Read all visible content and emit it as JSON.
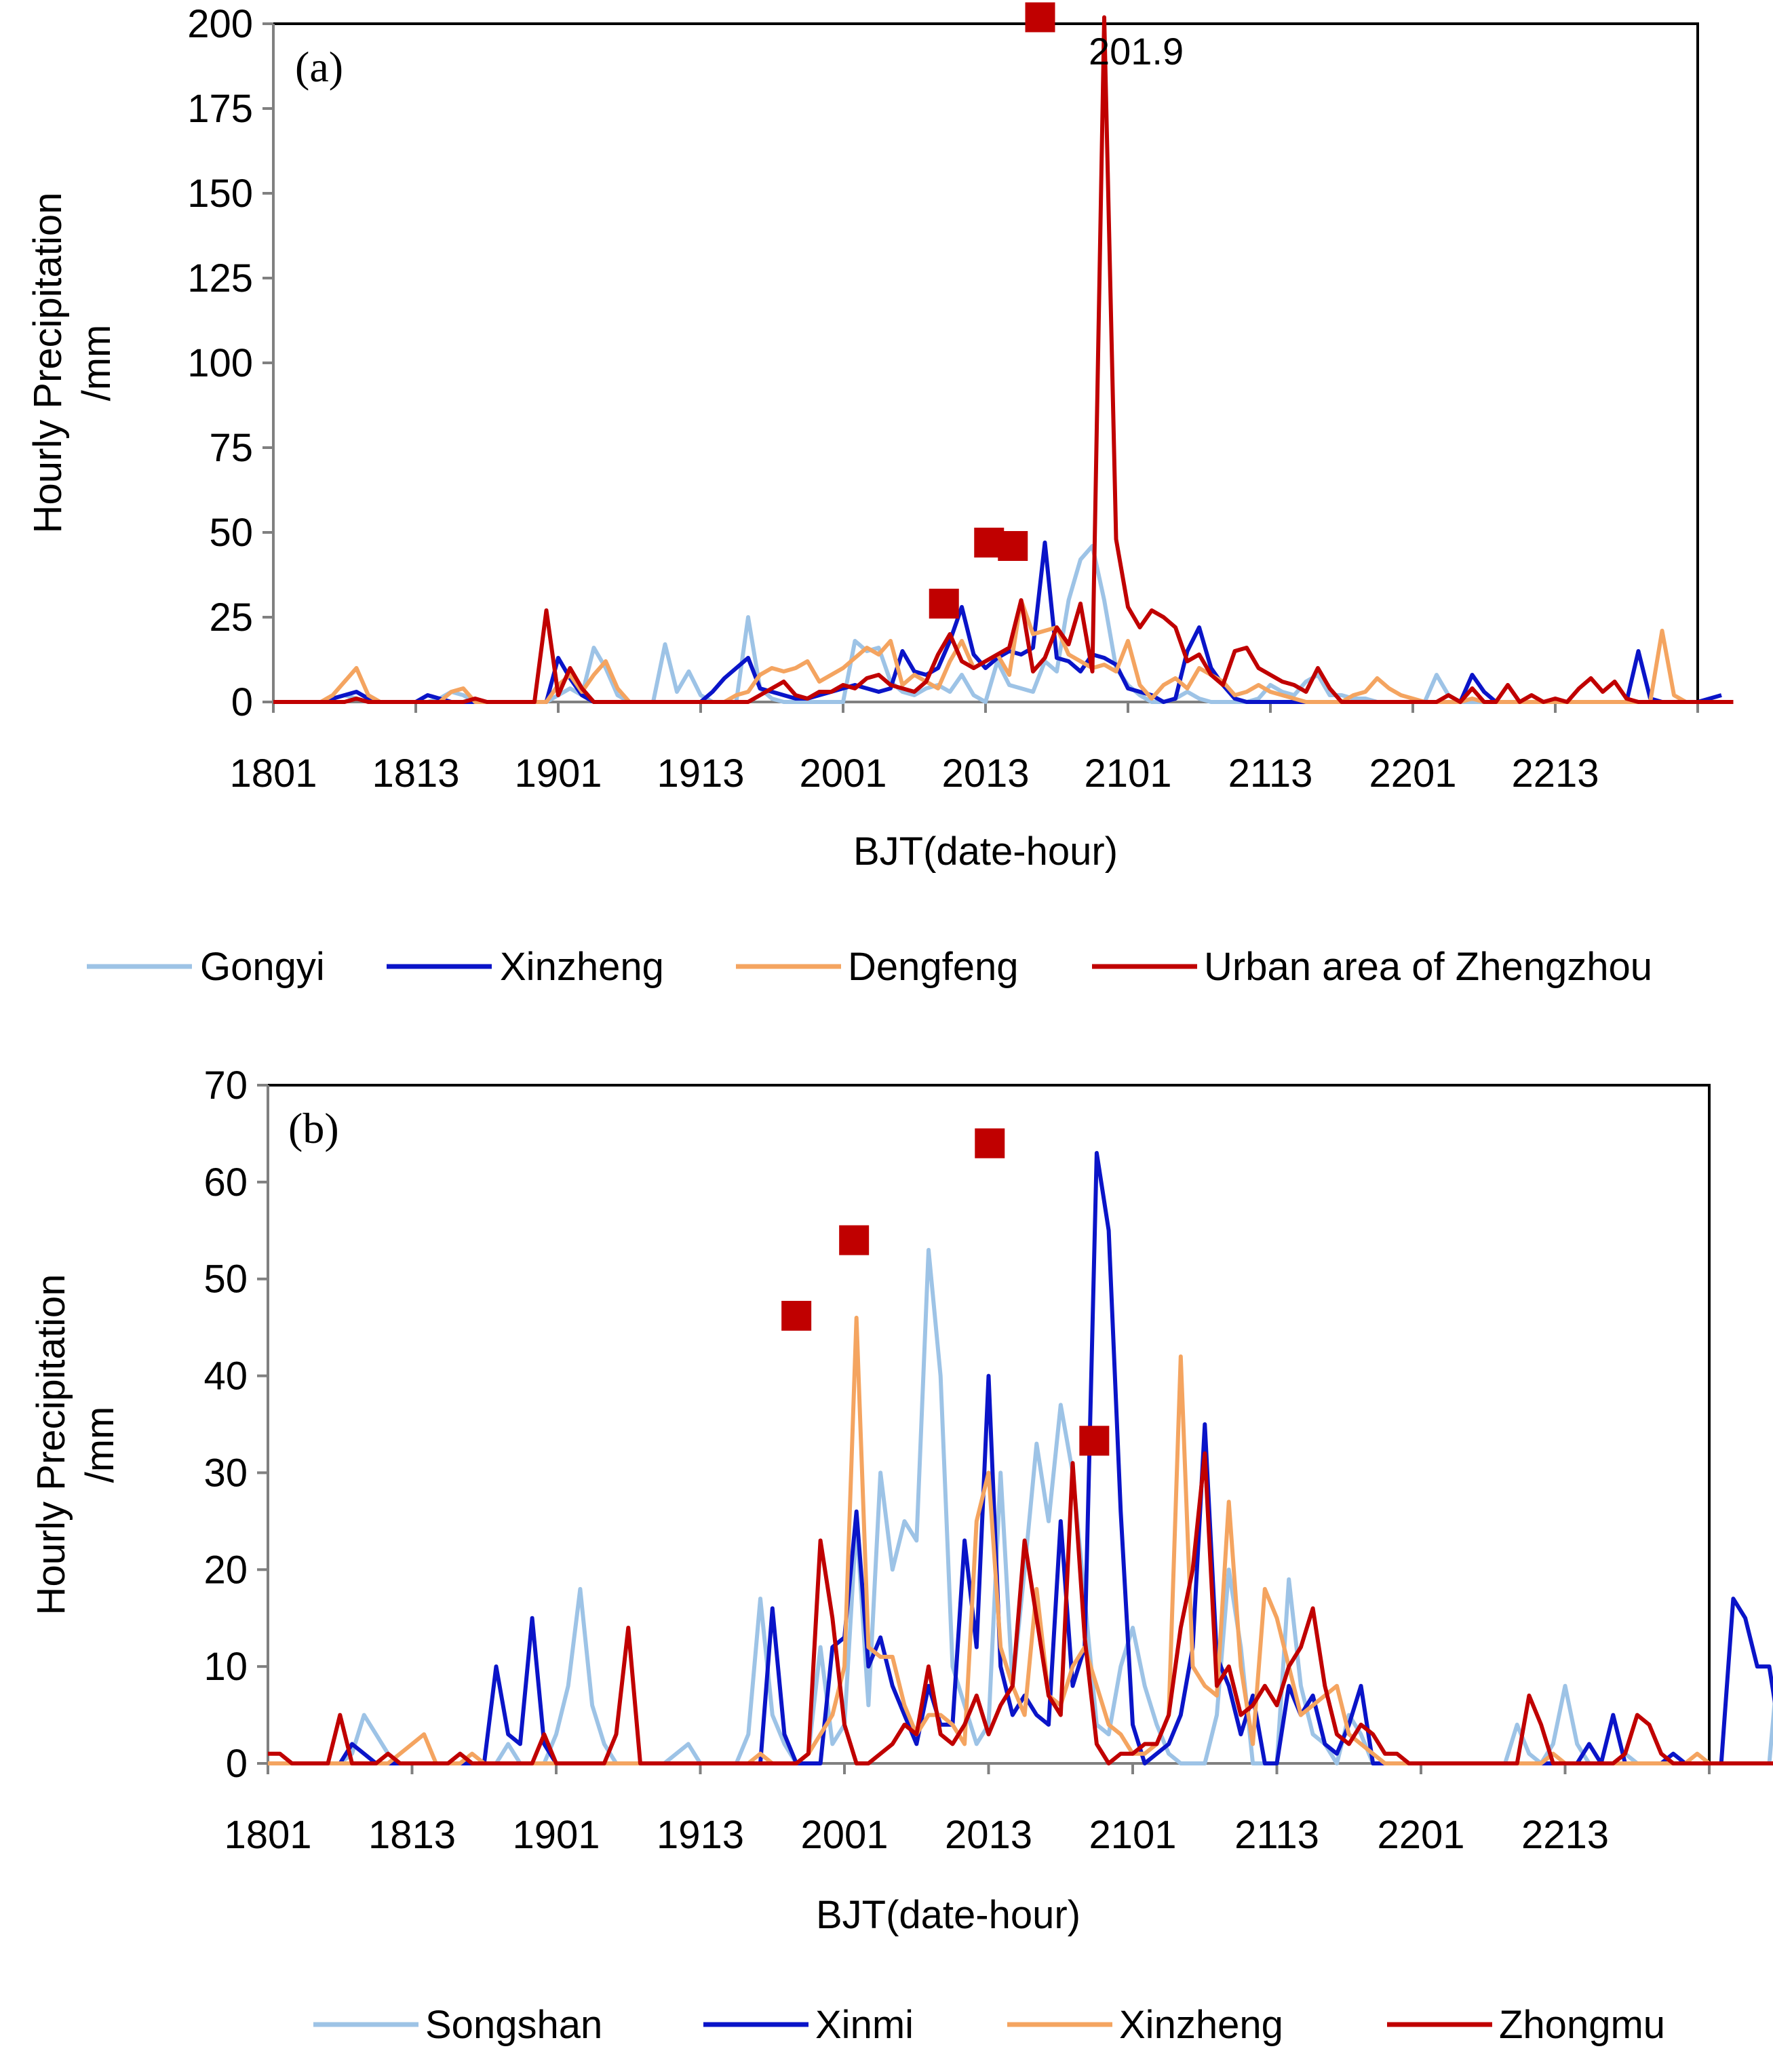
{
  "chart_data": [
    {
      "type": "line",
      "panel_label": "(a)",
      "xlabel": "BJT(date-hour)",
      "ylabel": "Hourly Precipitation /mm",
      "ylabel_lines": [
        "Hourly Precipitation",
        "/mm"
      ],
      "ylim": [
        0,
        200
      ],
      "yticks": [
        0,
        25,
        50,
        75,
        100,
        125,
        150,
        175,
        200
      ],
      "x_range": [
        0,
        96
      ],
      "xticks": [
        {
          "x": 0,
          "label": "1801"
        },
        {
          "x": 12,
          "label": "1813"
        },
        {
          "x": 24,
          "label": "1901"
        },
        {
          "x": 36,
          "label": "1913"
        },
        {
          "x": 48,
          "label": "2001"
        },
        {
          "x": 60,
          "label": "2013"
        },
        {
          "x": 72,
          "label": "2101"
        },
        {
          "x": 84,
          "label": "2113"
        },
        {
          "x": 96,
          "label": "2201"
        },
        {
          "x": 108,
          "label": "2213"
        }
      ],
      "x_max_hours": 120,
      "series": [
        {
          "name": "Gongyi",
          "color": "#9DC3E6",
          "values": [
            0,
            0,
            0,
            0,
            0,
            1,
            2,
            1,
            0,
            0,
            0,
            0,
            0,
            0,
            1,
            3,
            2,
            0,
            0,
            0,
            0,
            0,
            0,
            0,
            2,
            4,
            2,
            16,
            10,
            2,
            0,
            0,
            0,
            17,
            3,
            9,
            2,
            0,
            0,
            0,
            25,
            4,
            1,
            0,
            0,
            0,
            0,
            0,
            0,
            18,
            15,
            16,
            6,
            3,
            2,
            4,
            5,
            3,
            8,
            2,
            0,
            12,
            5,
            4,
            3,
            12,
            9,
            30,
            42,
            46,
            30,
            10,
            5,
            2,
            0,
            0,
            1,
            3,
            1,
            0,
            0,
            0,
            0,
            1,
            5,
            3,
            2,
            6,
            8,
            2,
            2,
            1,
            1,
            0,
            0,
            0,
            0,
            0,
            8,
            2,
            0,
            0,
            0,
            0,
            0,
            0,
            0,
            0,
            0,
            0,
            0,
            0,
            0,
            0,
            0,
            0,
            0,
            0,
            0,
            0,
            0
          ]
        },
        {
          "name": "Xinzheng",
          "color": "#0A14C8",
          "values": [
            0,
            0,
            0,
            0,
            0,
            1,
            2,
            3,
            1,
            0,
            0,
            0,
            0,
            2,
            1,
            0,
            0,
            0,
            0,
            0,
            0,
            0,
            0,
            0,
            13,
            7,
            2,
            0,
            0,
            0,
            0,
            0,
            0,
            0,
            0,
            0,
            0,
            3,
            7,
            10,
            13,
            4,
            3,
            2,
            1,
            1,
            2,
            3,
            4,
            5,
            4,
            3,
            4,
            15,
            9,
            8,
            10,
            18,
            28,
            14,
            10,
            13,
            15,
            14,
            16,
            47,
            13,
            12,
            9,
            14,
            13,
            11,
            4,
            3,
            2,
            0,
            1,
            15,
            22,
            10,
            5,
            1,
            0,
            0,
            0,
            0,
            0,
            0,
            0,
            0,
            0,
            0,
            0,
            0,
            0,
            0,
            0,
            0,
            0,
            0,
            0,
            8,
            3,
            0,
            0,
            0,
            0,
            0,
            0,
            0,
            0,
            0,
            0,
            0,
            0,
            15,
            1,
            0,
            0,
            0,
            0,
            1,
            2
          ]
        },
        {
          "name": "Dengfeng",
          "color": "#F4A460",
          "values": [
            0,
            0,
            0,
            0,
            0,
            2,
            6,
            10,
            2,
            0,
            0,
            0,
            0,
            0,
            0,
            3,
            4,
            0,
            0,
            0,
            0,
            0,
            0,
            0,
            5,
            8,
            3,
            8,
            12,
            4,
            0,
            0,
            0,
            0,
            0,
            0,
            0,
            0,
            0,
            2,
            3,
            8,
            10,
            9,
            10,
            12,
            6,
            8,
            10,
            13,
            16,
            14,
            18,
            5,
            8,
            6,
            4,
            12,
            18,
            10,
            12,
            14,
            8,
            30,
            20,
            21,
            22,
            14,
            12,
            10,
            11,
            9,
            18,
            5,
            1,
            5,
            7,
            4,
            10,
            8,
            6,
            2,
            3,
            5,
            3,
            2,
            1,
            0,
            0,
            0,
            0,
            2,
            3,
            7,
            4,
            2,
            1,
            0,
            0,
            0,
            0,
            1,
            0,
            0,
            0,
            0,
            0,
            0,
            0,
            0,
            0,
            0,
            0,
            0,
            0,
            0,
            0,
            21,
            2,
            0,
            0
          ]
        },
        {
          "name": "Urban area of Zhengzhou",
          "color": "#C00000",
          "values": [
            0,
            0,
            0,
            0,
            0,
            0,
            0,
            1,
            0,
            0,
            0,
            0,
            0,
            0,
            0,
            0,
            0,
            1,
            0,
            0,
            0,
            0,
            0,
            27,
            2,
            10,
            4,
            0,
            0,
            0,
            0,
            0,
            0,
            0,
            0,
            0,
            0,
            0,
            0,
            0,
            0,
            2,
            4,
            6,
            2,
            1,
            3,
            3,
            5,
            4,
            7,
            8,
            5,
            4,
            3,
            6,
            14,
            20,
            12,
            10,
            12,
            14,
            16,
            30,
            9,
            13,
            22,
            17,
            29,
            9,
            201.9,
            48,
            28,
            22,
            27,
            25,
            22,
            12,
            14,
            8,
            5,
            15,
            16,
            10,
            8,
            6,
            5,
            3,
            10,
            4,
            0,
            0,
            0,
            0,
            0,
            0,
            0,
            0,
            0,
            2,
            0,
            4,
            0,
            0,
            5,
            0,
            2,
            0,
            1,
            0,
            4,
            7,
            3,
            6,
            1,
            0,
            0,
            0,
            0,
            0,
            0,
            0,
            0,
            0
          ]
        }
      ],
      "markers": [
        {
          "x": 56.5,
          "y": 29,
          "series": "Urban area of Zhengzhou"
        },
        {
          "x": 60.3,
          "y": 47,
          "series": "Urban area of Zhengzhou"
        },
        {
          "x": 62.3,
          "y": 46,
          "series": "Urban area of Zhengzhou"
        },
        {
          "x": 64.6,
          "y": 201.9,
          "series": "Urban area of Zhengzhou"
        }
      ],
      "marker_color": "#C00000",
      "annotations": [
        {
          "text": "201.9",
          "x": 64.6,
          "y": 201.9
        }
      ],
      "legend": [
        "Gongyi",
        "Xinzheng",
        "Dengfeng",
        "Urban area of Zhengzhou"
      ],
      "legend_position": "bottom",
      "grid": false
    },
    {
      "type": "line",
      "panel_label": "(b)",
      "xlabel": "BJT(date-hour)",
      "ylabel": "Hourly Precipitation /mm",
      "ylabel_lines": [
        "Hourly Precipitation",
        "/mm"
      ],
      "ylim": [
        0,
        70
      ],
      "yticks": [
        0,
        10,
        20,
        30,
        40,
        50,
        60,
        70
      ],
      "xticks": [
        {
          "x": 0,
          "label": "1801"
        },
        {
          "x": 12,
          "label": "1813"
        },
        {
          "x": 24,
          "label": "1901"
        },
        {
          "x": 36,
          "label": "1913"
        },
        {
          "x": 48,
          "label": "2001"
        },
        {
          "x": 60,
          "label": "2013"
        },
        {
          "x": 72,
          "label": "2101"
        },
        {
          "x": 84,
          "label": "2113"
        },
        {
          "x": 96,
          "label": "2201"
        },
        {
          "x": 108,
          "label": "2213"
        }
      ],
      "x_max_hours": 120,
      "series": [
        {
          "name": "Songshan",
          "color": "#9DC3E6",
          "values": [
            0,
            0,
            0,
            0,
            0,
            0,
            0,
            1,
            5,
            3,
            1,
            0,
            0,
            0,
            0,
            0,
            1,
            0,
            0,
            0,
            2,
            0,
            0,
            0,
            3,
            8,
            18,
            6,
            2,
            0,
            0,
            0,
            0,
            0,
            1,
            2,
            0,
            0,
            0,
            0,
            3,
            17,
            5,
            2,
            0,
            1,
            12,
            2,
            4,
            25,
            6,
            30,
            20,
            25,
            23,
            53,
            40,
            10,
            6,
            2,
            4,
            30,
            8,
            20,
            33,
            25,
            37,
            30,
            17,
            4,
            3,
            10,
            14,
            8,
            4,
            1,
            0,
            0,
            0,
            5,
            20,
            12,
            0,
            0,
            0,
            19,
            8,
            3,
            2,
            0,
            5,
            3,
            0,
            0,
            0,
            0,
            0,
            0,
            0,
            0,
            0,
            0,
            0,
            0,
            4,
            1,
            0,
            2,
            8,
            2,
            0,
            0,
            0,
            1,
            0,
            0,
            0,
            0,
            0,
            0,
            0,
            0,
            0,
            0,
            0,
            0,
            14,
            0,
            0,
            0,
            0
          ]
        },
        {
          "name": "Xinmi",
          "color": "#0A14C8",
          "values": [
            0,
            0,
            0,
            0,
            0,
            0,
            0,
            2,
            1,
            0,
            0,
            0,
            0,
            0,
            0,
            0,
            0,
            0,
            0,
            10,
            3,
            2,
            15,
            2,
            0,
            0,
            0,
            0,
            0,
            0,
            0,
            0,
            0,
            0,
            0,
            0,
            0,
            0,
            0,
            0,
            0,
            0,
            16,
            3,
            0,
            0,
            0,
            12,
            13,
            26,
            10,
            13,
            8,
            5,
            2,
            8,
            4,
            4,
            23,
            12,
            40,
            10,
            5,
            7,
            5,
            4,
            25,
            8,
            12,
            63,
            55,
            26,
            4,
            0,
            1,
            2,
            5,
            12,
            35,
            11,
            8,
            3,
            7,
            0,
            0,
            8,
            5,
            7,
            2,
            1,
            4,
            8,
            0,
            0,
            0,
            0,
            0,
            0,
            0,
            0,
            0,
            0,
            0,
            0,
            0,
            0,
            0,
            0,
            0,
            0,
            2,
            0,
            5,
            0,
            0,
            0,
            0,
            1,
            0,
            0,
            0,
            0,
            17,
            15,
            10,
            10,
            2,
            2,
            0,
            0
          ]
        },
        {
          "name": "Xinzheng",
          "color": "#F4A460",
          "values": [
            0,
            0,
            0,
            0,
            0,
            0,
            0,
            0,
            0,
            0,
            0,
            1,
            2,
            3,
            0,
            0,
            0,
            1,
            0,
            0,
            0,
            0,
            0,
            0,
            0,
            0,
            0,
            0,
            0,
            0,
            0,
            0,
            0,
            0,
            0,
            0,
            0,
            0,
            0,
            0,
            0,
            1,
            0,
            0,
            0,
            1,
            3,
            5,
            10,
            46,
            12,
            11,
            11,
            6,
            3,
            5,
            5,
            4,
            2,
            25,
            30,
            12,
            8,
            5,
            18,
            7,
            6,
            10,
            12,
            8,
            4,
            3,
            1,
            1,
            2,
            5,
            42,
            10,
            8,
            7,
            27,
            10,
            2,
            18,
            15,
            10,
            5,
            6,
            7,
            8,
            3,
            2,
            1,
            0,
            0,
            0,
            0,
            0,
            0,
            0,
            0,
            0,
            0,
            0,
            0,
            0,
            0,
            1,
            0,
            0,
            0,
            0,
            0,
            0,
            0,
            0,
            0,
            0,
            0,
            1,
            0,
            0,
            0,
            0,
            0,
            0,
            0,
            0,
            0,
            0,
            0
          ]
        },
        {
          "name": "Zhongmu",
          "color": "#C00000",
          "values": [
            1,
            1,
            0,
            0,
            0,
            0,
            5,
            0,
            0,
            0,
            1,
            0,
            0,
            0,
            0,
            0,
            1,
            0,
            0,
            0,
            0,
            0,
            0,
            3,
            0,
            0,
            0,
            0,
            0,
            3,
            14,
            0,
            0,
            0,
            0,
            0,
            0,
            0,
            0,
            0,
            0,
            0,
            0,
            0,
            0,
            1,
            23,
            15,
            4,
            0,
            0,
            1,
            2,
            4,
            3,
            10,
            3,
            2,
            4,
            7,
            3,
            6,
            8,
            23,
            15,
            7,
            5,
            31,
            13,
            2,
            0,
            1,
            1,
            2,
            2,
            5,
            14,
            20,
            32,
            8,
            10,
            5,
            6,
            8,
            6,
            10,
            12,
            16,
            8,
            3,
            2,
            4,
            3,
            1,
            1,
            0,
            0,
            0,
            0,
            0,
            0,
            0,
            0,
            0,
            0,
            7,
            4,
            0,
            0,
            0,
            0,
            0,
            0,
            1,
            5,
            4,
            1,
            0,
            0,
            0,
            0,
            0,
            0,
            0,
            0,
            0,
            0,
            0,
            0,
            0,
            0
          ]
        }
      ],
      "markers": [
        {
          "x": 44.0,
          "y": 46.2,
          "series": "Zhongmu"
        },
        {
          "x": 48.8,
          "y": 54.0,
          "series": "Zhongmu"
        },
        {
          "x": 60.1,
          "y": 64.0,
          "series": "Zhongmu"
        },
        {
          "x": 68.8,
          "y": 33.3,
          "series": "Zhongmu"
        }
      ],
      "marker_color": "#C00000",
      "legend": [
        "Songshan",
        "Xinmi",
        "Xinzheng",
        "Zhongmu"
      ],
      "legend_position": "bottom",
      "grid": false
    }
  ]
}
